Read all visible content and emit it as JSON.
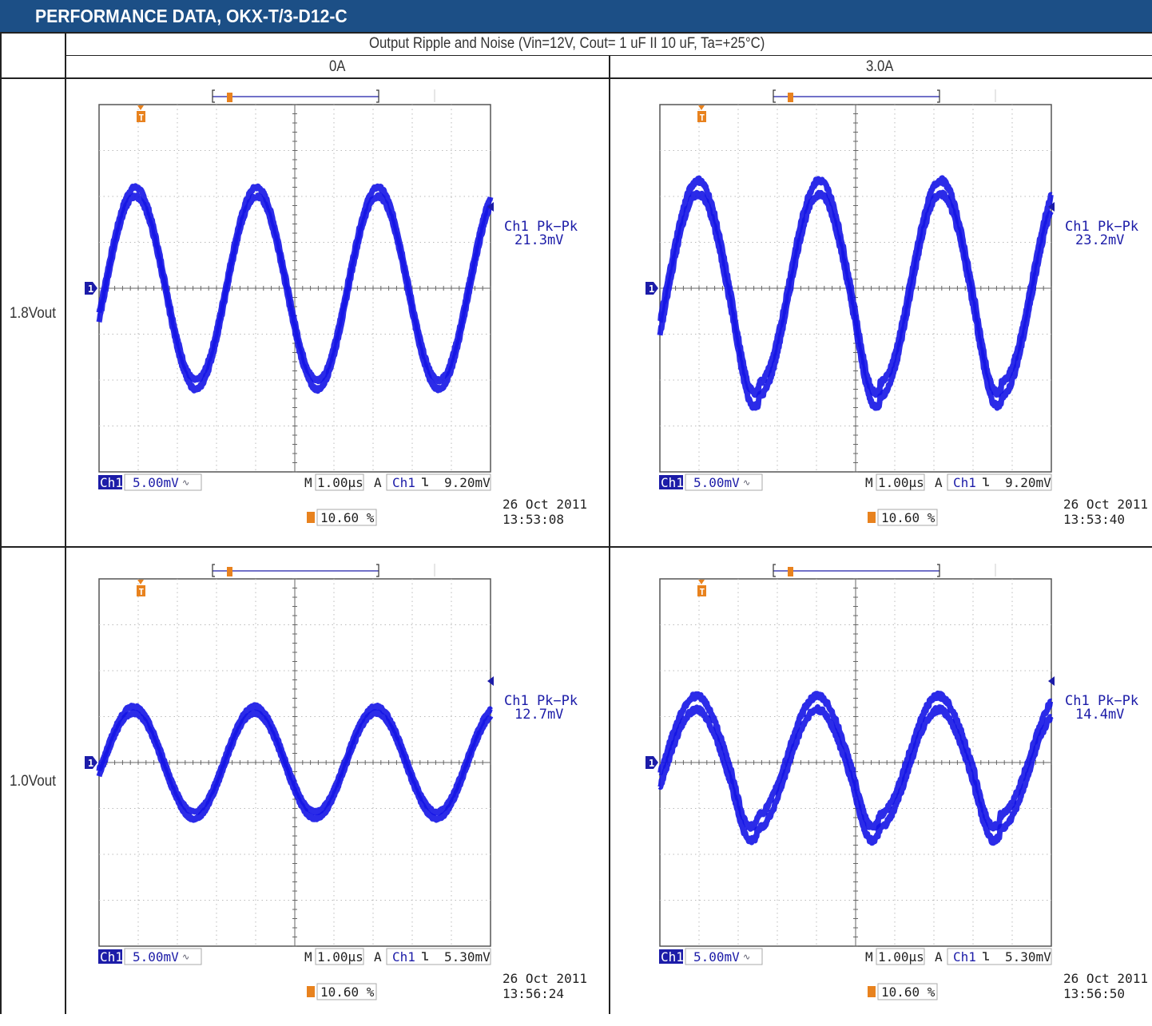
{
  "banner": {
    "title": "PERFORMANCE DATA, OKX-T/3-D12-C"
  },
  "table": {
    "header": "Output Ripple and Noise (Vin=12V, Cout= 1 uF II 10 uF, Ta=+25°C)",
    "columns": [
      "0A",
      "3.0A"
    ],
    "rows": [
      "1.8Vout",
      "1.0Vout"
    ]
  },
  "colors": {
    "banner": "#1c4f86",
    "trace": "#1414e6",
    "trigger": "#e8821e",
    "label": "#1c1ca8"
  },
  "chart_data": [
    {
      "type": "line",
      "panel": "1.8Vout / 0A",
      "measurement_label": "Ch1 Pk−Pk",
      "measurement_value": "21.3mV",
      "channel": "Ch1",
      "vertical_scale": "5.00mV",
      "timebase": "1.00µs",
      "trigger_source": "Ch1",
      "trigger_level": "9.20mV",
      "trigger_position": "10.60 %",
      "date": "26 Oct  2011",
      "time": "13:53:08",
      "xlim": [
        0,
        10
      ],
      "ylim": [
        -4,
        4
      ],
      "waveform": {
        "period_div": 3.1,
        "amplitude_div": 2.1,
        "phase_div": 0.15,
        "noise_div": 0.2,
        "dip": false
      }
    },
    {
      "type": "line",
      "panel": "1.8Vout / 3.0A",
      "measurement_label": "Ch1 Pk−Pk",
      "measurement_value": "23.2mV",
      "channel": "Ch1",
      "vertical_scale": "5.00mV",
      "timebase": "1.00µs",
      "trigger_source": "Ch1",
      "trigger_level": "9.20mV",
      "trigger_position": "10.60 %",
      "date": "26 Oct  2011",
      "time": "13:53:40",
      "xlim": [
        0,
        10
      ],
      "ylim": [
        -4,
        4
      ],
      "waveform": {
        "period_div": 3.1,
        "amplitude_div": 2.2,
        "phase_div": 0.2,
        "noise_div": 0.3,
        "dip": true
      }
    },
    {
      "type": "line",
      "panel": "1.0Vout / 0A",
      "measurement_label": "Ch1 Pk−Pk",
      "measurement_value": "12.7mV",
      "channel": "Ch1",
      "vertical_scale": "5.00mV",
      "timebase": "1.00µs",
      "trigger_source": "Ch1",
      "trigger_level": "5.30mV",
      "trigger_position": "10.60 %",
      "date": "26 Oct  2011",
      "time": "13:56:24",
      "xlim": [
        0,
        10
      ],
      "ylim": [
        -4,
        4
      ],
      "waveform": {
        "period_div": 3.1,
        "amplitude_div": 1.15,
        "phase_div": 0.1,
        "noise_div": 0.15,
        "dip": false
      }
    },
    {
      "type": "line",
      "panel": "1.0Vout / 3.0A",
      "measurement_label": "Ch1 Pk−Pk",
      "measurement_value": "14.4mV",
      "channel": "Ch1",
      "vertical_scale": "5.00mV",
      "timebase": "1.00µs",
      "trigger_source": "Ch1",
      "trigger_level": "5.30mV",
      "trigger_position": "10.60 %",
      "date": "26 Oct  2011",
      "time": "13:56:50",
      "xlim": [
        0,
        10
      ],
      "ylim": [
        -4,
        4
      ],
      "waveform": {
        "period_div": 3.1,
        "amplitude_div": 1.3,
        "phase_div": 0.15,
        "noise_div": 0.3,
        "dip": true
      }
    }
  ]
}
